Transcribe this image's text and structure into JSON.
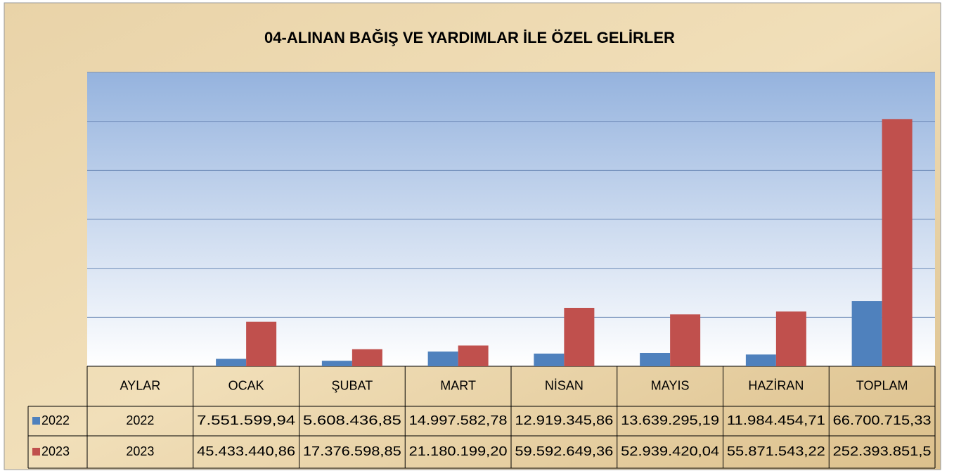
{
  "chart_data": {
    "type": "bar",
    "title": "04-ALINAN BAĞIŞ VE YARDIMLAR İLE ÖZEL GELİRLER",
    "corner_label": "AYLAR",
    "categories": [
      "OCAK",
      "ŞUBAT",
      "MART",
      "NİSAN",
      "MAYIS",
      "HAZİRAN",
      "TOPLAM"
    ],
    "series": [
      {
        "name": "2022",
        "row_label": "2022",
        "color": "#4f81bd",
        "values": [
          7551599.94,
          5608436.85,
          14997582.78,
          12919345.86,
          13639295.19,
          11984454.71,
          66700715.33
        ],
        "value_labels": [
          "7.551.599,94",
          "5.608.436,85",
          "14.997.582,78",
          "12.919.345,86",
          "13.639.295,19",
          "11.984.454,71",
          "66.700.715,33"
        ]
      },
      {
        "name": "2023",
        "row_label": "2023",
        "color": "#c0504d",
        "values": [
          45433440.86,
          17376598.85,
          21180199.2,
          59592649.36,
          52939420.04,
          55871543.22,
          252393851.5
        ],
        "value_labels": [
          "45.433.440,86",
          "17.376.598,85",
          "21.180.199,20",
          "59.592.649,36",
          "52.939.420,04",
          "55.871.543,22",
          "252.393.851,5"
        ]
      }
    ],
    "ylim": [
      0,
      300000000
    ],
    "yticks": [
      0,
      50000000,
      100000000,
      150000000,
      200000000,
      250000000,
      300000000
    ],
    "grid": true
  }
}
